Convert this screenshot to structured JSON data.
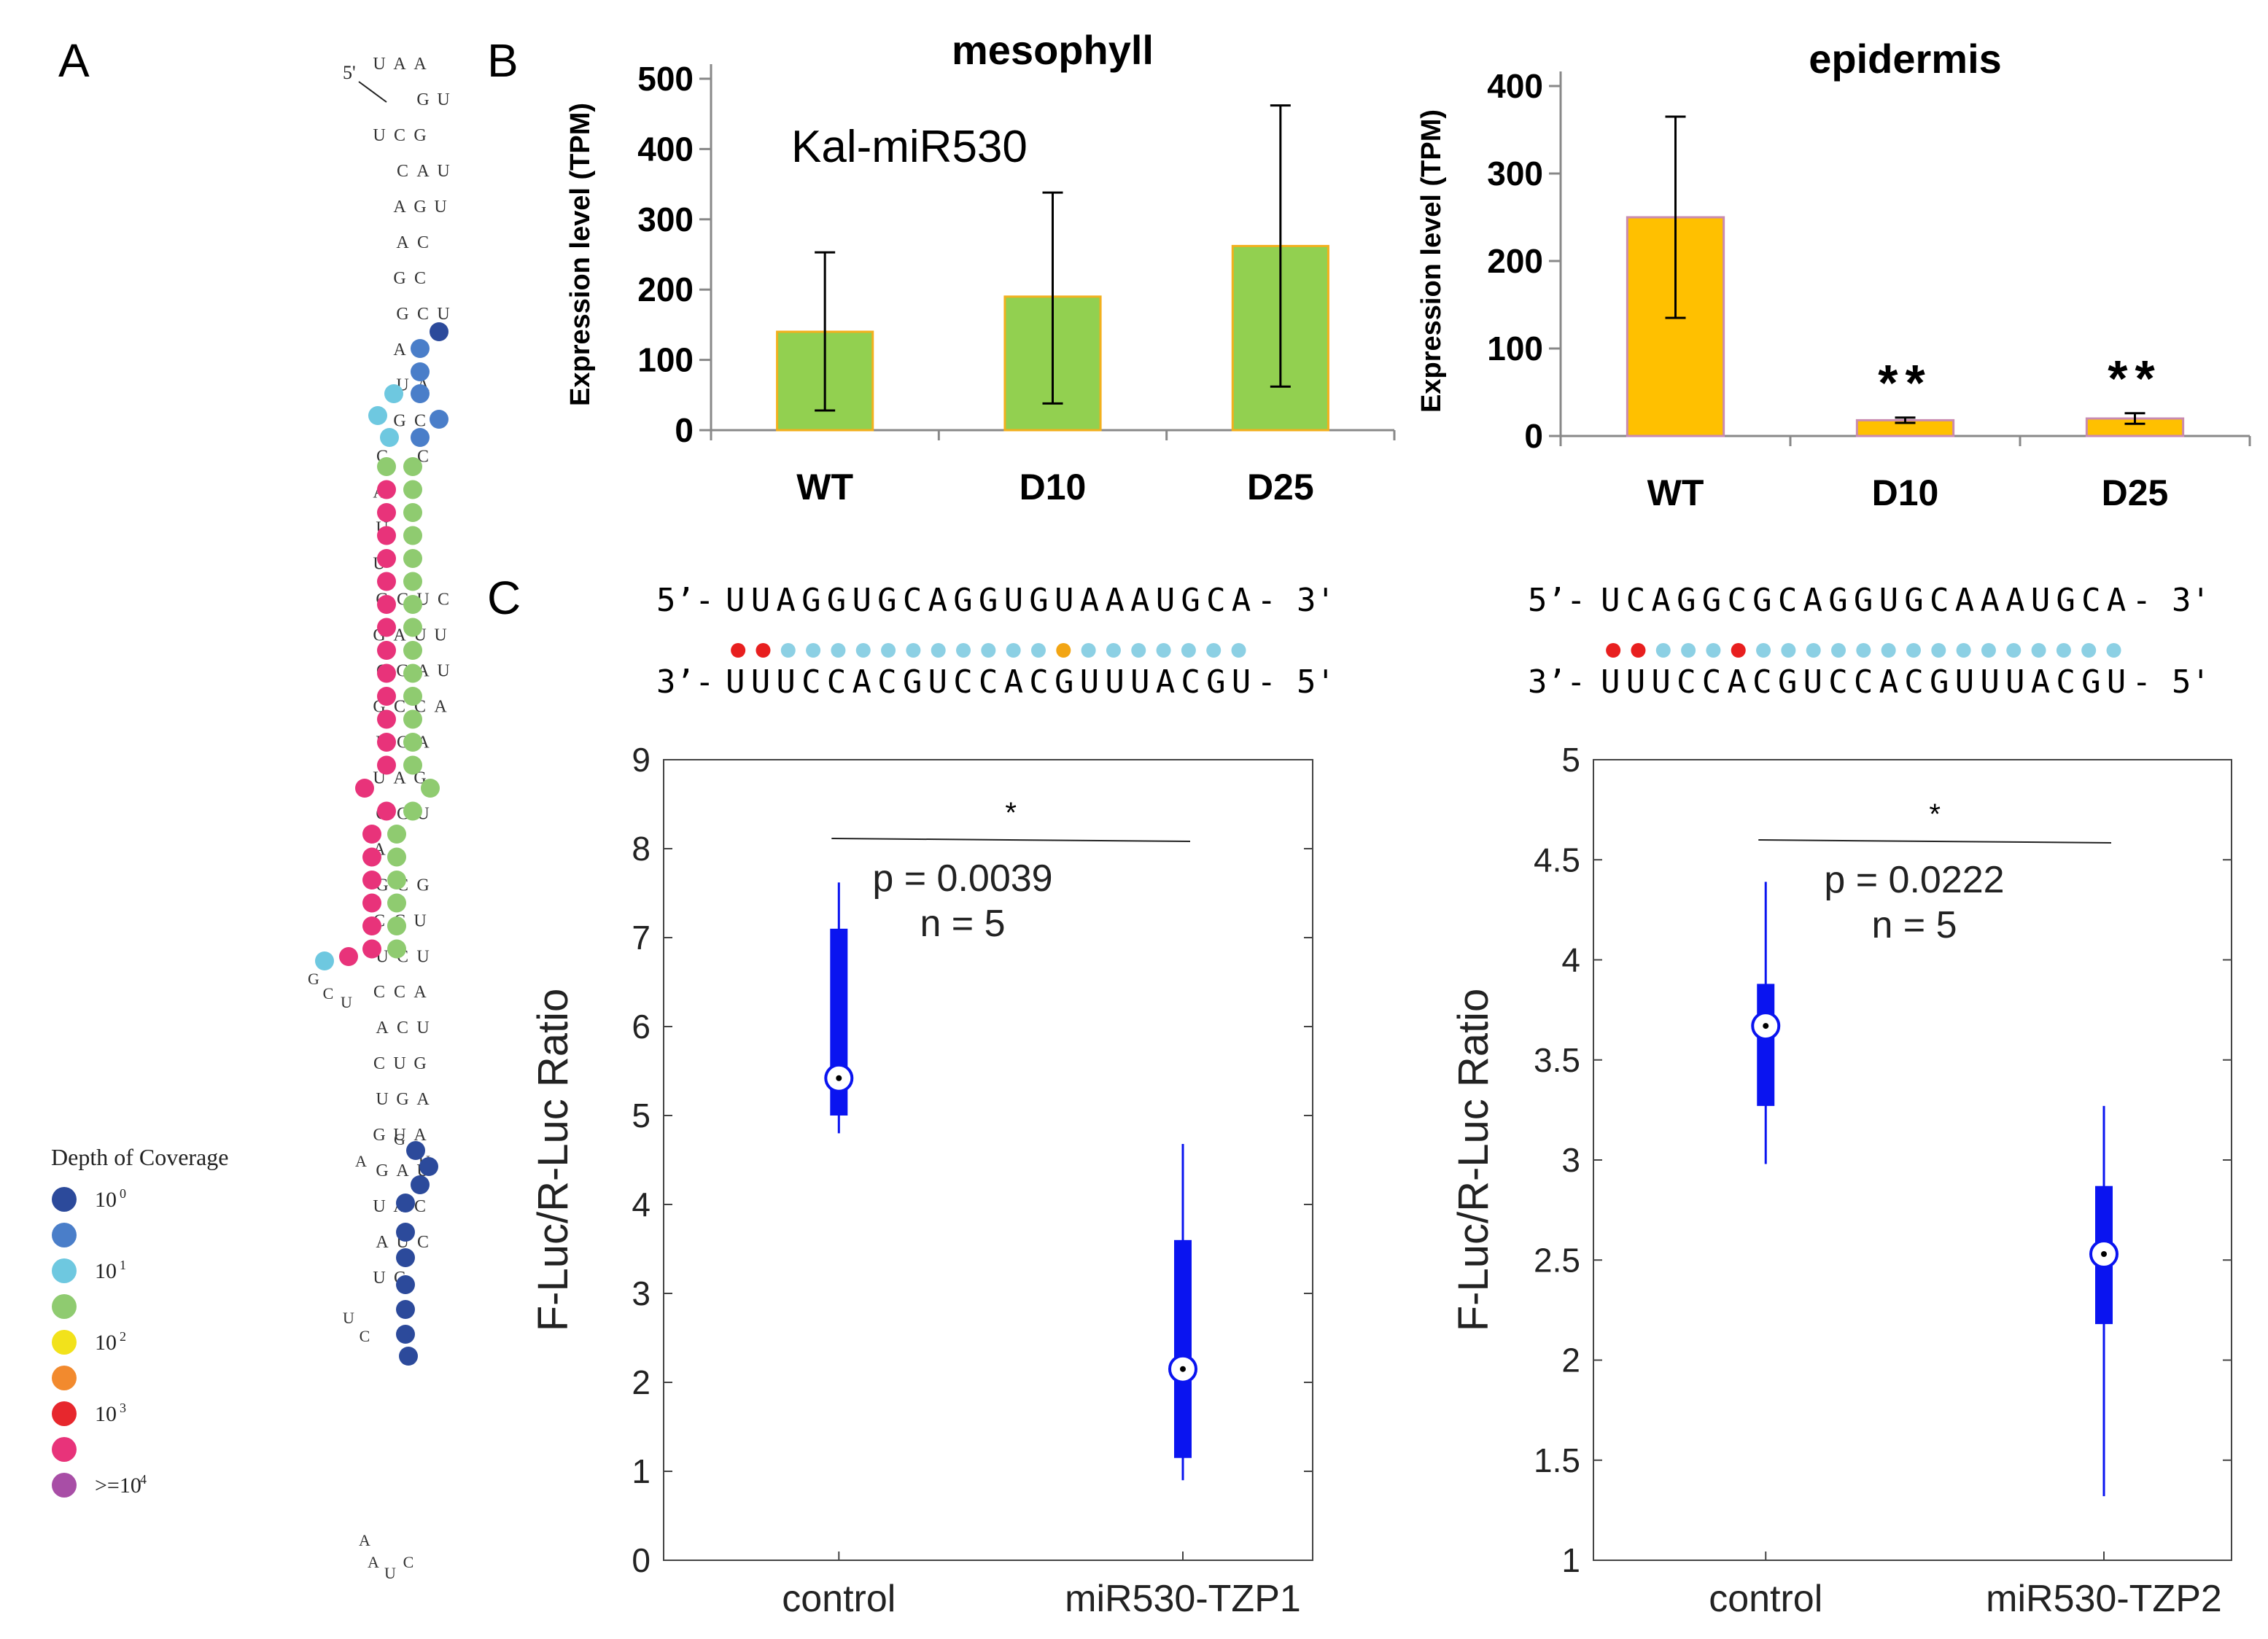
{
  "panel_labels": {
    "a": "A",
    "b": "B",
    "c": "C"
  },
  "hairpin": {
    "five_prime_label": "5'",
    "seq_rows": [
      [
        "U",
        "A",
        "A",
        ""
      ],
      [
        "",
        "",
        "G",
        "U"
      ],
      [
        "U",
        "C",
        "G",
        ""
      ],
      [
        "",
        "C",
        "A",
        "U"
      ],
      [
        "",
        "A",
        "G",
        "U"
      ],
      [
        "",
        "A",
        "C",
        ""
      ],
      [
        "",
        "G",
        "C",
        ""
      ],
      [
        "",
        "G",
        "C",
        "U"
      ],
      [
        "",
        "A",
        "U",
        ""
      ],
      [
        "",
        "U",
        "A",
        ""
      ],
      [
        "",
        "G",
        "C",
        ""
      ],
      [
        "C",
        "",
        "C",
        ""
      ],
      [
        "A",
        "",
        "",
        ""
      ],
      [
        "U",
        "",
        "",
        ""
      ],
      [
        "U",
        "",
        "",
        ""
      ],
      [
        "G",
        "C",
        "U",
        "C"
      ],
      [
        "G",
        "A",
        "U",
        "U"
      ],
      [
        "C",
        "G",
        "A",
        "U"
      ],
      [
        "G",
        "C",
        "C",
        "A"
      ],
      [
        "U",
        "C",
        "A",
        ""
      ],
      [
        "U",
        "A",
        "G",
        ""
      ],
      [
        "G",
        "C",
        "U",
        ""
      ],
      [
        "A",
        "",
        "",
        ""
      ],
      [
        "G",
        "C",
        "G",
        ""
      ],
      [
        "C",
        "C",
        "U",
        ""
      ],
      [
        "U",
        "C",
        "U",
        ""
      ],
      [
        "C",
        "C",
        "A",
        ""
      ],
      [
        "A",
        "C",
        "U",
        ""
      ],
      [
        "C",
        "U",
        "G",
        ""
      ],
      [
        "U",
        "G",
        "A",
        ""
      ],
      [
        "G",
        "U",
        "A",
        ""
      ],
      [
        "G",
        "A",
        "U",
        ""
      ],
      [
        "U",
        "A",
        "C",
        ""
      ],
      [
        "A",
        "U",
        "C",
        ""
      ],
      [
        "U",
        "C",
        ""
      ]
    ],
    "extra_letters": [
      "A",
      "U",
      "C",
      "G",
      "C",
      "U",
      "A",
      "U",
      "C",
      "A",
      "G",
      "U"
    ],
    "legend": {
      "title": "Depth of Coverage",
      "entries": [
        {
          "label": "10",
          "exp": "0",
          "color": "#2c4a9b"
        },
        {
          "label": "",
          "exp": "",
          "color": "#4a7ec9"
        },
        {
          "label": "10",
          "exp": "1",
          "color": "#6ec8e0"
        },
        {
          "label": "",
          "exp": "",
          "color": "#8fcb70"
        },
        {
          "label": "10",
          "exp": "2",
          "color": "#f2e21b"
        },
        {
          "label": "",
          "exp": "",
          "color": "#f28a2e"
        },
        {
          "label": "10",
          "exp": "3",
          "color": "#e7272d"
        },
        {
          "label": "",
          "exp": "",
          "color": "#e8337a"
        },
        {
          "label": ">=10",
          "exp": "4",
          "color": "#a84ea6"
        }
      ]
    }
  },
  "duplexes": [
    {
      "top_prefix": "5’-",
      "top_seq": "UUAGGUGCAGGUGUAAAUGCA-",
      "top_suffix": "3'",
      "bottom_prefix": "3’-",
      "bottom_seq": "UUUCCACGUCCACGUUUACGU-",
      "bottom_suffix": "5'",
      "dot_colors": [
        "#e81f1f",
        "#e81f1f",
        "#8cd0e4",
        "#8cd0e4",
        "#8cd0e4",
        "#8cd0e4",
        "#8cd0e4",
        "#8cd0e4",
        "#8cd0e4",
        "#8cd0e4",
        "#8cd0e4",
        "#8cd0e4",
        "#8cd0e4",
        "#f2a514",
        "#8cd0e4",
        "#8cd0e4",
        "#8cd0e4",
        "#8cd0e4",
        "#8cd0e4",
        "#8cd0e4",
        "#8cd0e4"
      ]
    },
    {
      "top_prefix": "5’-",
      "top_seq": "UCAGGCGCAGGUGCAAAUGCA-",
      "top_suffix": "3'",
      "bottom_prefix": "3’-",
      "bottom_seq": "UUUCCACGUCCACGUUUACGU-",
      "bottom_suffix": "5'",
      "dot_colors": [
        "#e81f1f",
        "#e81f1f",
        "#8cd0e4",
        "#8cd0e4",
        "#8cd0e4",
        "#e81f1f",
        "#8cd0e4",
        "#8cd0e4",
        "#8cd0e4",
        "#8cd0e4",
        "#8cd0e4",
        "#8cd0e4",
        "#8cd0e4",
        "#8cd0e4",
        "#8cd0e4",
        "#8cd0e4",
        "#8cd0e4",
        "#8cd0e4",
        "#8cd0e4",
        "#8cd0e4",
        "#8cd0e4"
      ]
    }
  ],
  "chart_data": [
    {
      "id": "mesophyll",
      "type": "bar",
      "title": "mesophyll",
      "annotation": "Kal-miR530",
      "ylabel": "Expression level (TPM)",
      "xlabel": "",
      "categories": [
        "WT",
        "D10",
        "D25"
      ],
      "values": [
        140,
        190,
        262
      ],
      "errors_low": [
        28,
        38,
        62
      ],
      "errors_high": [
        253,
        338,
        462
      ],
      "significance": [
        "",
        "",
        ""
      ],
      "ylim": [
        0,
        500
      ],
      "yticks": [
        0,
        100,
        200,
        300,
        400,
        500
      ],
      "bar_color": "#92d050",
      "bar_edge": "#f2b01e"
    },
    {
      "id": "epidermis",
      "type": "bar",
      "title": "epidermis",
      "ylabel": "Expression level (TPM)",
      "xlabel": "",
      "categories": [
        "WT",
        "D10",
        "D25"
      ],
      "values": [
        250,
        18,
        20
      ],
      "errors_low": [
        135,
        15,
        14
      ],
      "errors_high": [
        365,
        21,
        26
      ],
      "significance": [
        "",
        "**",
        "**"
      ],
      "ylim": [
        0,
        400
      ],
      "yticks": [
        0,
        100,
        200,
        300,
        400
      ],
      "bar_color": "#ffc000",
      "bar_edge": "#c98bb0"
    },
    {
      "id": "tzp1",
      "type": "box",
      "ylabel": "F-Luc/R-Luc Ratio",
      "categories": [
        "control",
        "miR530-TZP1"
      ],
      "boxes": [
        {
          "whisker_low": 4.8,
          "q1": 5.0,
          "median": 5.42,
          "q3": 7.1,
          "whisker_high": 7.62
        },
        {
          "whisker_low": 0.9,
          "q1": 1.15,
          "median": 2.15,
          "q3": 3.6,
          "whisker_high": 4.68
        }
      ],
      "ylim": [
        0,
        9
      ],
      "yticks": [
        0,
        1,
        2,
        3,
        4,
        5,
        6,
        7,
        8,
        9
      ],
      "star": "*",
      "p_text": "p = 0.0039",
      "n_text": "n = 5",
      "box_color": "#0a14f0"
    },
    {
      "id": "tzp2",
      "type": "box",
      "ylabel": "F-Luc/R-Luc Ratio",
      "categories": [
        "control",
        "miR530-TZP2"
      ],
      "boxes": [
        {
          "whisker_low": 2.98,
          "q1": 3.27,
          "median": 3.67,
          "q3": 3.88,
          "whisker_high": 4.39
        },
        {
          "whisker_low": 1.32,
          "q1": 2.18,
          "median": 2.53,
          "q3": 2.87,
          "whisker_high": 3.27
        }
      ],
      "ylim": [
        1,
        5
      ],
      "yticks": [
        1,
        1.5,
        2,
        2.5,
        3,
        3.5,
        4,
        4.5,
        5
      ],
      "star": "*",
      "p_text": "p = 0.0222",
      "n_text": "n = 5",
      "box_color": "#0a14f0"
    }
  ]
}
